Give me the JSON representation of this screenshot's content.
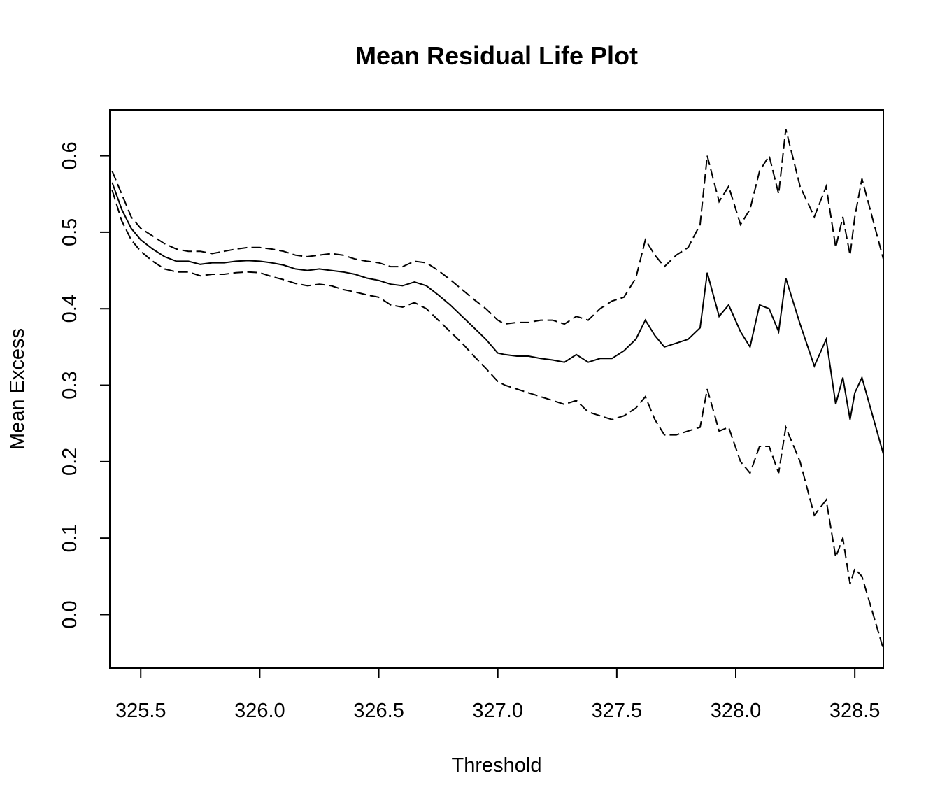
{
  "chart_data": {
    "type": "line",
    "title": "Mean Residual Life Plot",
    "xlabel": "Threshold",
    "ylabel": "Mean Excess",
    "xlim": [
      325.37,
      328.62
    ],
    "ylim": [
      -0.07,
      0.66
    ],
    "x_ticks": [
      "325.5",
      "326.0",
      "326.5",
      "327.0",
      "327.5",
      "328.0",
      "328.5"
    ],
    "y_ticks": [
      "0.0",
      "0.1",
      "0.2",
      "0.3",
      "0.4",
      "0.5",
      "0.6"
    ],
    "grid": false,
    "legend": "none",
    "series": [
      {
        "role": "mean",
        "line_style": "solid",
        "x": [
          325.38,
          325.42,
          325.46,
          325.5,
          325.55,
          325.6,
          325.65,
          325.7,
          325.75,
          325.8,
          325.85,
          325.9,
          325.95,
          326.0,
          326.05,
          326.1,
          326.15,
          326.2,
          326.25,
          326.3,
          326.35,
          326.4,
          326.45,
          326.5,
          326.55,
          326.6,
          326.65,
          326.7,
          326.75,
          326.8,
          326.85,
          326.9,
          326.95,
          327.0,
          327.03,
          327.08,
          327.13,
          327.18,
          327.23,
          327.28,
          327.33,
          327.38,
          327.43,
          327.48,
          327.53,
          327.58,
          327.62,
          327.66,
          327.7,
          327.75,
          327.8,
          327.85,
          327.88,
          327.93,
          327.97,
          328.02,
          328.06,
          328.1,
          328.14,
          328.18,
          328.21,
          328.27,
          328.33,
          328.38,
          328.42,
          328.45,
          328.48,
          328.5,
          328.53,
          328.62
        ],
        "y": [
          0.565,
          0.53,
          0.505,
          0.49,
          0.478,
          0.468,
          0.462,
          0.462,
          0.458,
          0.46,
          0.46,
          0.462,
          0.463,
          0.462,
          0.46,
          0.457,
          0.452,
          0.45,
          0.452,
          0.45,
          0.448,
          0.445,
          0.44,
          0.437,
          0.432,
          0.43,
          0.435,
          0.43,
          0.418,
          0.405,
          0.39,
          0.375,
          0.36,
          0.342,
          0.34,
          0.338,
          0.338,
          0.335,
          0.333,
          0.33,
          0.34,
          0.33,
          0.335,
          0.335,
          0.345,
          0.36,
          0.385,
          0.365,
          0.35,
          0.355,
          0.36,
          0.375,
          0.447,
          0.39,
          0.405,
          0.37,
          0.35,
          0.405,
          0.4,
          0.37,
          0.44,
          0.38,
          0.325,
          0.36,
          0.275,
          0.31,
          0.255,
          0.29,
          0.31,
          0.21
        ]
      },
      {
        "role": "upper",
        "line_style": "dashed",
        "x": [
          325.38,
          325.42,
          325.46,
          325.5,
          325.55,
          325.6,
          325.65,
          325.7,
          325.75,
          325.8,
          325.85,
          325.9,
          325.95,
          326.0,
          326.05,
          326.1,
          326.15,
          326.2,
          326.25,
          326.3,
          326.35,
          326.4,
          326.45,
          326.5,
          326.55,
          326.6,
          326.65,
          326.7,
          326.75,
          326.8,
          326.85,
          326.9,
          326.95,
          327.0,
          327.03,
          327.08,
          327.13,
          327.18,
          327.23,
          327.28,
          327.33,
          327.38,
          327.43,
          327.48,
          327.53,
          327.58,
          327.62,
          327.66,
          327.7,
          327.75,
          327.8,
          327.85,
          327.88,
          327.93,
          327.97,
          328.02,
          328.06,
          328.1,
          328.14,
          328.18,
          328.21,
          328.27,
          328.33,
          328.38,
          328.42,
          328.45,
          328.48,
          328.5,
          328.53,
          328.62
        ],
        "y": [
          0.58,
          0.55,
          0.52,
          0.505,
          0.495,
          0.485,
          0.478,
          0.475,
          0.475,
          0.472,
          0.475,
          0.478,
          0.48,
          0.48,
          0.478,
          0.475,
          0.47,
          0.468,
          0.47,
          0.472,
          0.47,
          0.465,
          0.462,
          0.46,
          0.455,
          0.455,
          0.462,
          0.46,
          0.45,
          0.438,
          0.425,
          0.412,
          0.4,
          0.385,
          0.38,
          0.382,
          0.382,
          0.385,
          0.385,
          0.38,
          0.39,
          0.385,
          0.4,
          0.41,
          0.415,
          0.44,
          0.49,
          0.47,
          0.455,
          0.47,
          0.48,
          0.51,
          0.6,
          0.54,
          0.56,
          0.51,
          0.53,
          0.58,
          0.6,
          0.55,
          0.635,
          0.56,
          0.52,
          0.56,
          0.48,
          0.52,
          0.47,
          0.52,
          0.57,
          0.465
        ]
      },
      {
        "role": "lower",
        "line_style": "dashed",
        "x": [
          325.38,
          325.42,
          325.46,
          325.5,
          325.55,
          325.6,
          325.65,
          325.7,
          325.75,
          325.8,
          325.85,
          325.9,
          325.95,
          326.0,
          326.05,
          326.1,
          326.15,
          326.2,
          326.25,
          326.3,
          326.35,
          326.4,
          326.45,
          326.5,
          326.55,
          326.6,
          326.65,
          326.7,
          326.75,
          326.8,
          326.85,
          326.9,
          326.95,
          327.0,
          327.03,
          327.08,
          327.13,
          327.18,
          327.23,
          327.28,
          327.33,
          327.38,
          327.43,
          327.48,
          327.53,
          327.58,
          327.62,
          327.66,
          327.7,
          327.75,
          327.8,
          327.85,
          327.88,
          327.93,
          327.97,
          328.02,
          328.06,
          328.1,
          328.14,
          328.18,
          328.21,
          328.27,
          328.33,
          328.38,
          328.42,
          328.45,
          328.48,
          328.5,
          328.53,
          328.62
        ],
        "y": [
          0.555,
          0.515,
          0.49,
          0.475,
          0.462,
          0.452,
          0.448,
          0.448,
          0.443,
          0.445,
          0.445,
          0.447,
          0.448,
          0.447,
          0.442,
          0.438,
          0.433,
          0.43,
          0.432,
          0.43,
          0.425,
          0.422,
          0.418,
          0.415,
          0.405,
          0.402,
          0.408,
          0.4,
          0.385,
          0.37,
          0.355,
          0.338,
          0.322,
          0.305,
          0.3,
          0.295,
          0.29,
          0.285,
          0.28,
          0.275,
          0.28,
          0.265,
          0.26,
          0.255,
          0.26,
          0.27,
          0.285,
          0.255,
          0.235,
          0.235,
          0.24,
          0.245,
          0.295,
          0.24,
          0.245,
          0.2,
          0.185,
          0.22,
          0.22,
          0.185,
          0.245,
          0.2,
          0.13,
          0.15,
          0.075,
          0.1,
          0.04,
          0.06,
          0.05,
          -0.045
        ]
      }
    ]
  }
}
